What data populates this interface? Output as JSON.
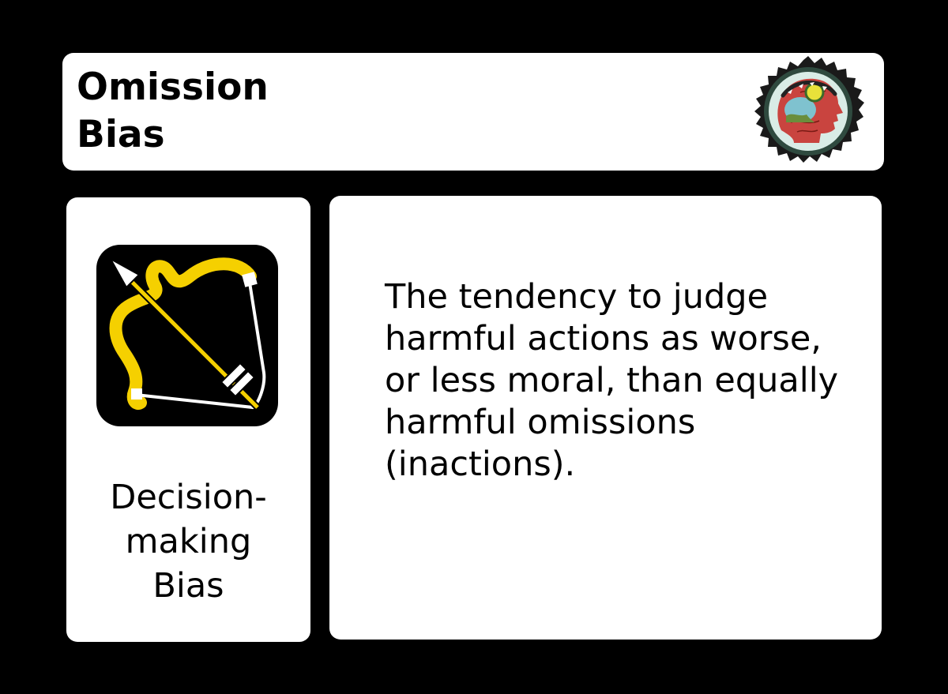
{
  "title": "Omission\nBias",
  "category": {
    "label": "Decision-\nmaking\n Bias",
    "icon": "bow-and-arrow-icon"
  },
  "seal_icon": "profile-head-seal-icon",
  "description": "The tendency to judge harmful actions as worse, or less moral, than equally harmful omissions (inactions).",
  "colors": {
    "background": "#000000",
    "card": "#ffffff",
    "bow": "#f5d000"
  }
}
